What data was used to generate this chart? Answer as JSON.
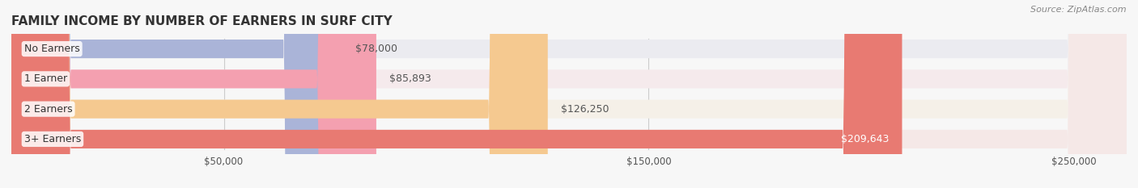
{
  "title": "FAMILY INCOME BY NUMBER OF EARNERS IN SURF CITY",
  "source": "Source: ZipAtlas.com",
  "categories": [
    "No Earners",
    "1 Earner",
    "2 Earners",
    "3+ Earners"
  ],
  "values": [
    78000,
    85893,
    126250,
    209643
  ],
  "bar_colors": [
    "#aab4d8",
    "#f4a0b0",
    "#f5c990",
    "#e87a72"
  ],
  "bar_bg_colors": [
    "#ebebf0",
    "#f5eaec",
    "#f5f0e8",
    "#f5e8e7"
  ],
  "value_labels": [
    "$78,000",
    "$85,893",
    "$126,250",
    "$209,643"
  ],
  "value_label_colors": [
    "#555555",
    "#555555",
    "#555555",
    "#ffffff"
  ],
  "xmin": 0,
  "xmax": 262500,
  "xticks": [
    50000,
    150000,
    250000
  ],
  "xtick_labels": [
    "$50,000",
    "$150,000",
    "$250,000"
  ],
  "title_fontsize": 11,
  "label_fontsize": 9,
  "tick_fontsize": 8.5,
  "source_fontsize": 8,
  "bg_color": "#f7f7f7",
  "bar_bg_color": "#eeeeee"
}
